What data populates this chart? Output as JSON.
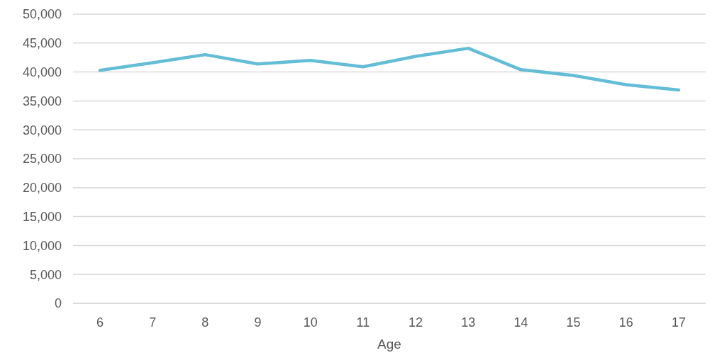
{
  "chart_data": {
    "type": "line",
    "xlabel": "Age",
    "categories": [
      "6",
      "7",
      "8",
      "9",
      "10",
      "11",
      "12",
      "13",
      "14",
      "15",
      "16",
      "17"
    ],
    "series": [
      {
        "color": "#63bdd6",
        "values": [
          40300,
          41600,
          43000,
          41400,
          42000,
          40900,
          42700,
          44100,
          40400,
          39400,
          37800,
          36900
        ]
      }
    ],
    "ylim": [
      0,
      50000
    ],
    "yticks": [
      {
        "value": 0,
        "label": "0"
      },
      {
        "value": 5000,
        "label": "5,000"
      },
      {
        "value": 10000,
        "label": "10,000"
      },
      {
        "value": 15000,
        "label": "15,000"
      },
      {
        "value": 20000,
        "label": "20,000"
      },
      {
        "value": 25000,
        "label": "25,000"
      },
      {
        "value": 30000,
        "label": "30,000"
      },
      {
        "value": 35000,
        "label": "35,000"
      },
      {
        "value": 40000,
        "label": "40,000"
      },
      {
        "value": 45000,
        "label": "45,000"
      },
      {
        "value": 50000,
        "label": "50,000"
      }
    ],
    "grid": "y",
    "marker": "none",
    "line_style": "solid"
  }
}
